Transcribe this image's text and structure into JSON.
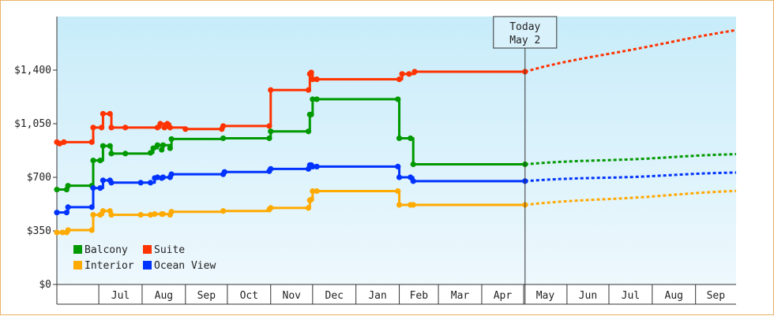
{
  "chart_data": {
    "type": "line",
    "title": "",
    "xlabel": "",
    "ylabel": "",
    "ylim": [
      0,
      1750
    ],
    "y_ticks": [
      {
        "value": 0,
        "label": "$0"
      },
      {
        "value": 350,
        "label": "$350"
      },
      {
        "value": 700,
        "label": "$700"
      },
      {
        "value": 1050,
        "label": "$1,050"
      },
      {
        "value": 1400,
        "label": "$1,400"
      }
    ],
    "x_range": [
      "2016-06-01",
      "2017-09-30"
    ],
    "x_ticks": [
      {
        "date": "2016-07-01",
        "label": "Jul"
      },
      {
        "date": "2016-08-01",
        "label": "Aug"
      },
      {
        "date": "2016-09-01",
        "label": "Sep"
      },
      {
        "date": "2016-10-01",
        "label": "Oct"
      },
      {
        "date": "2016-11-01",
        "label": "Nov"
      },
      {
        "date": "2016-12-01",
        "label": "Dec"
      },
      {
        "date": "2017-01-01",
        "label": "Jan"
      },
      {
        "date": "2017-02-01",
        "label": "Feb"
      },
      {
        "date": "2017-03-01",
        "label": "Mar"
      },
      {
        "date": "2017-04-01",
        "label": "Apr"
      },
      {
        "date": "2017-05-01",
        "label": "May"
      },
      {
        "date": "2017-06-01",
        "label": "Jun"
      },
      {
        "date": "2017-07-01",
        "label": "Jul"
      },
      {
        "date": "2017-08-01",
        "label": "Aug"
      },
      {
        "date": "2017-09-01",
        "label": "Sep"
      }
    ],
    "today": {
      "date": "2017-05-02",
      "label_line1": "Today",
      "label_line2": "May 2"
    },
    "grid": true,
    "legend_placement": "bottom-left",
    "series": [
      {
        "name": "Suite",
        "color": "#ff3300",
        "points": [
          [
            "2016-06-01",
            930
          ],
          [
            "2016-06-03",
            920
          ],
          [
            "2016-06-06",
            930
          ],
          [
            "2016-06-26",
            930
          ],
          [
            "2016-06-27",
            1025
          ],
          [
            "2016-07-03",
            1025
          ],
          [
            "2016-07-04",
            1115
          ],
          [
            "2016-07-09",
            1115
          ],
          [
            "2016-07-10",
            1025
          ],
          [
            "2016-07-20",
            1025
          ],
          [
            "2016-08-12",
            1025
          ],
          [
            "2016-08-14",
            1050
          ],
          [
            "2016-08-17",
            1025
          ],
          [
            "2016-08-19",
            1050
          ],
          [
            "2016-08-21",
            1025
          ],
          [
            "2016-09-01",
            1015
          ],
          [
            "2016-09-27",
            1015
          ],
          [
            "2016-09-28",
            1035
          ],
          [
            "2016-10-31",
            1035
          ],
          [
            "2016-11-01",
            1270
          ],
          [
            "2016-11-28",
            1270
          ],
          [
            "2016-11-29",
            1375
          ],
          [
            "2016-11-30",
            1385
          ],
          [
            "2016-12-01",
            1340
          ],
          [
            "2016-12-04",
            1340
          ],
          [
            "2017-02-01",
            1340
          ],
          [
            "2017-02-03",
            1375
          ],
          [
            "2017-02-08",
            1375
          ],
          [
            "2017-02-12",
            1390
          ],
          [
            "2017-05-02",
            1390
          ]
        ],
        "projection": [
          [
            "2017-05-02",
            1390
          ],
          [
            "2017-09-30",
            1660
          ]
        ]
      },
      {
        "name": "Balcony",
        "color": "#009900",
        "points": [
          [
            "2016-06-01",
            620
          ],
          [
            "2016-06-08",
            620
          ],
          [
            "2016-06-09",
            645
          ],
          [
            "2016-06-26",
            645
          ],
          [
            "2016-06-27",
            810
          ],
          [
            "2016-07-02",
            810
          ],
          [
            "2016-07-04",
            905
          ],
          [
            "2016-07-09",
            905
          ],
          [
            "2016-07-10",
            855
          ],
          [
            "2016-07-20",
            855
          ],
          [
            "2016-08-07",
            860
          ],
          [
            "2016-08-09",
            890
          ],
          [
            "2016-08-12",
            910
          ],
          [
            "2016-08-15",
            880
          ],
          [
            "2016-08-16",
            910
          ],
          [
            "2016-08-21",
            890
          ],
          [
            "2016-08-22",
            950
          ],
          [
            "2016-09-28",
            955
          ],
          [
            "2016-10-31",
            955
          ],
          [
            "2016-11-01",
            1000
          ],
          [
            "2016-11-28",
            1000
          ],
          [
            "2016-11-29",
            1110
          ],
          [
            "2016-11-30",
            1110
          ],
          [
            "2016-12-01",
            1210
          ],
          [
            "2016-12-04",
            1210
          ],
          [
            "2017-01-31",
            1210
          ],
          [
            "2017-02-01",
            955
          ],
          [
            "2017-02-09",
            955
          ],
          [
            "2017-02-11",
            785
          ],
          [
            "2017-05-02",
            785
          ]
        ],
        "projection": [
          [
            "2017-05-02",
            785
          ],
          [
            "2017-09-30",
            850
          ]
        ]
      },
      {
        "name": "Ocean View",
        "color": "#0033ff",
        "points": [
          [
            "2016-06-01",
            470
          ],
          [
            "2016-06-08",
            470
          ],
          [
            "2016-06-09",
            505
          ],
          [
            "2016-06-26",
            505
          ],
          [
            "2016-06-27",
            630
          ],
          [
            "2016-07-02",
            630
          ],
          [
            "2016-07-04",
            680
          ],
          [
            "2016-07-09",
            680
          ],
          [
            "2016-07-10",
            665
          ],
          [
            "2016-07-31",
            665
          ],
          [
            "2016-08-07",
            665
          ],
          [
            "2016-08-10",
            695
          ],
          [
            "2016-08-12",
            700
          ],
          [
            "2016-08-15",
            695
          ],
          [
            "2016-08-16",
            700
          ],
          [
            "2016-08-21",
            700
          ],
          [
            "2016-08-22",
            720
          ],
          [
            "2016-09-28",
            720
          ],
          [
            "2016-09-29",
            735
          ],
          [
            "2016-10-31",
            740
          ],
          [
            "2016-11-01",
            755
          ],
          [
            "2016-11-28",
            755
          ],
          [
            "2016-11-29",
            780
          ],
          [
            "2016-11-30",
            780
          ],
          [
            "2016-12-01",
            770
          ],
          [
            "2016-12-04",
            770
          ],
          [
            "2017-01-31",
            770
          ],
          [
            "2017-02-01",
            700
          ],
          [
            "2017-02-09",
            700
          ],
          [
            "2017-02-11",
            675
          ],
          [
            "2017-05-02",
            675
          ]
        ],
        "projection": [
          [
            "2017-05-02",
            675
          ],
          [
            "2017-09-30",
            730
          ]
        ]
      },
      {
        "name": "Interior",
        "color": "#ffaa00",
        "points": [
          [
            "2016-06-01",
            340
          ],
          [
            "2016-06-05",
            340
          ],
          [
            "2016-06-08",
            340
          ],
          [
            "2016-06-09",
            355
          ],
          [
            "2016-06-26",
            355
          ],
          [
            "2016-06-27",
            455
          ],
          [
            "2016-07-02",
            455
          ],
          [
            "2016-07-04",
            480
          ],
          [
            "2016-07-09",
            480
          ],
          [
            "2016-07-10",
            455
          ],
          [
            "2016-07-31",
            455
          ],
          [
            "2016-08-07",
            455
          ],
          [
            "2016-08-10",
            460
          ],
          [
            "2016-08-15",
            460
          ],
          [
            "2016-08-16",
            460
          ],
          [
            "2016-08-21",
            455
          ],
          [
            "2016-08-22",
            475
          ],
          [
            "2016-09-28",
            480
          ],
          [
            "2016-10-31",
            490
          ],
          [
            "2016-11-01",
            500
          ],
          [
            "2016-11-28",
            500
          ],
          [
            "2016-11-29",
            550
          ],
          [
            "2016-11-30",
            555
          ],
          [
            "2016-12-01",
            610
          ],
          [
            "2016-12-04",
            610
          ],
          [
            "2017-01-31",
            610
          ],
          [
            "2017-02-01",
            520
          ],
          [
            "2017-02-09",
            520
          ],
          [
            "2017-02-11",
            520
          ],
          [
            "2017-05-02",
            520
          ]
        ],
        "projection": [
          [
            "2017-05-02",
            520
          ],
          [
            "2017-09-30",
            610
          ]
        ]
      }
    ],
    "legend": [
      {
        "name": "Balcony",
        "color": "#009900"
      },
      {
        "name": "Suite",
        "color": "#ff3300"
      },
      {
        "name": "Interior",
        "color": "#ffaa00"
      },
      {
        "name": "Ocean View",
        "color": "#0033ff"
      }
    ]
  }
}
